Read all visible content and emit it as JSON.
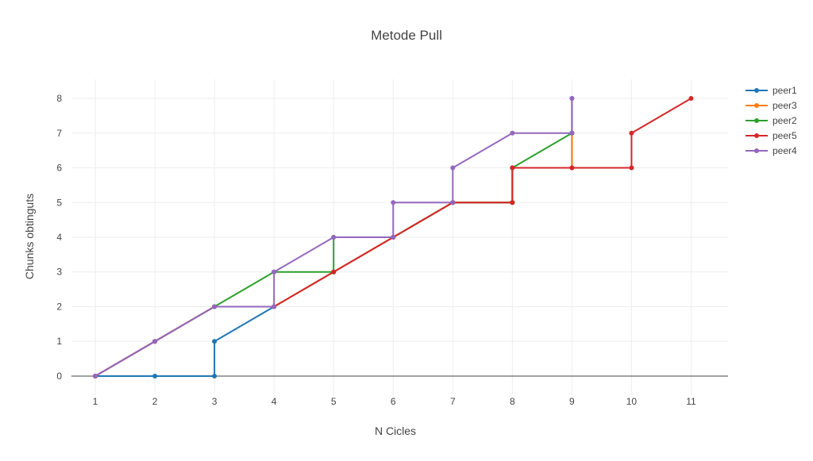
{
  "chart_data": {
    "type": "line",
    "title": "Metode Pull",
    "xlabel": "N Cicles",
    "ylabel": "Chunks obtinguts",
    "xlim": [
      0.6,
      11.62
    ],
    "ylim": [
      -0.55,
      8.55
    ],
    "xticks": [
      1,
      2,
      3,
      4,
      5,
      6,
      7,
      8,
      9,
      10,
      11
    ],
    "yticks": [
      0,
      1,
      2,
      3,
      4,
      5,
      6,
      7,
      8
    ],
    "grid": true,
    "legend": "top-right",
    "series": [
      {
        "name": "peer1",
        "color": "#1f77b4",
        "x": [
          1,
          2,
          3,
          3,
          4,
          4,
          5,
          6,
          6,
          7,
          7,
          8,
          8,
          9,
          9,
          9
        ],
        "y": [
          0,
          0,
          0,
          1,
          2,
          2,
          3,
          4,
          4,
          5,
          5,
          5,
          6,
          6,
          7,
          8
        ]
      },
      {
        "name": "peer3",
        "color": "#ff7f0e",
        "x": [
          1,
          2,
          3,
          4,
          5,
          6,
          7,
          8,
          8,
          9,
          9
        ],
        "y": [
          0,
          1,
          2,
          2,
          3,
          4,
          5,
          5,
          6,
          6,
          7
        ]
      },
      {
        "name": "peer2",
        "color": "#2ca02c",
        "x": [
          1,
          2,
          3,
          4,
          5,
          5,
          6,
          7,
          8,
          8,
          9
        ],
        "y": [
          0,
          1,
          2,
          3,
          3,
          4,
          4,
          5,
          5,
          6,
          7
        ]
      },
      {
        "name": "peer5",
        "color": "#d62728",
        "x": [
          1,
          2,
          3,
          4,
          5,
          6,
          7,
          8,
          8,
          9,
          10,
          10,
          11
        ],
        "y": [
          0,
          1,
          2,
          2,
          3,
          4,
          5,
          5,
          6,
          6,
          6,
          7,
          8
        ]
      },
      {
        "name": "peer4",
        "color": "#9467bd",
        "x": [
          1,
          2,
          3,
          4,
          4,
          4,
          5,
          6,
          6,
          7,
          7,
          8,
          9,
          9
        ],
        "y": [
          0,
          1,
          2,
          2,
          3,
          3,
          4,
          4,
          5,
          5,
          6,
          7,
          7,
          8
        ]
      }
    ]
  }
}
